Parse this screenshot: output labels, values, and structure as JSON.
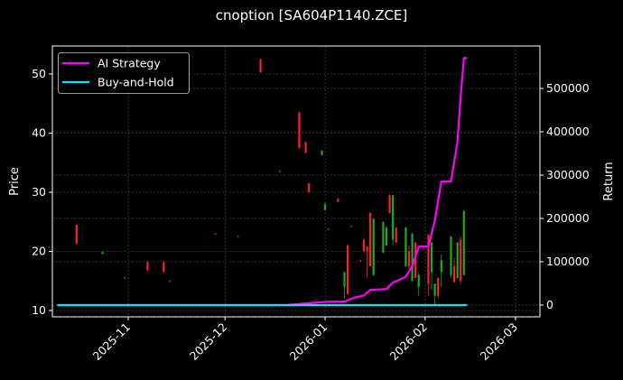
{
  "chart_data": {
    "type": "candlestick+line",
    "title": "cnoption [SA604P1140.ZCE]",
    "xlabel": "",
    "ylabel_left": "Price",
    "ylabel_right": "Return",
    "x_ticks": [
      "2025-11",
      "2025-12",
      "2026-01",
      "2026-02",
      "2026-03"
    ],
    "y_left_ticks": [
      10,
      20,
      30,
      40,
      50
    ],
    "y_right_ticks": [
      0,
      100000,
      200000,
      300000,
      400000,
      500000
    ],
    "ylim_left": [
      9,
      55
    ],
    "ylim_right": [
      -30000,
      580000
    ],
    "grid": true,
    "legend_position": "upper left",
    "legend": [
      {
        "label": "AI Strategy",
        "color": "#ff00ff"
      },
      {
        "label": "Buy-and-Hold",
        "color": "#00e5ff"
      }
    ],
    "colors": {
      "up": "#1faa1f",
      "down": "#ff2020",
      "background": "#000000",
      "grid": "#555555",
      "axes": "#ffffff"
    },
    "candles": [
      {
        "date": "2025-10-16",
        "open": 24.5,
        "close": 21.3,
        "high": 24.5,
        "low": 21.2
      },
      {
        "date": "2025-10-24",
        "open": 19.6,
        "close": 19.9,
        "high": 20.0,
        "low": 19.5
      },
      {
        "date": "2025-10-31",
        "open": 15.6,
        "close": 15.5,
        "high": 15.7,
        "low": 15.4
      },
      {
        "date": "2025-11-07",
        "open": 18.2,
        "close": 16.8,
        "high": 18.3,
        "low": 16.7
      },
      {
        "date": "2025-11-12",
        "open": 18.2,
        "close": 16.5,
        "high": 18.3,
        "low": 16.4
      },
      {
        "date": "2025-11-14",
        "open": 15.0,
        "close": 14.9,
        "high": 15.1,
        "low": 14.8
      },
      {
        "date": "2025-11-28",
        "open": 23.0,
        "close": 22.9,
        "high": 23.1,
        "low": 22.8
      },
      {
        "date": "2025-12-05",
        "open": 22.6,
        "close": 22.5,
        "high": 22.7,
        "low": 22.4
      },
      {
        "date": "2025-12-12",
        "open": 52.5,
        "close": 50.3,
        "high": 52.6,
        "low": 50.2
      },
      {
        "date": "2025-12-18",
        "open": 33.6,
        "close": 33.5,
        "high": 33.7,
        "low": 33.4
      },
      {
        "date": "2025-12-24",
        "open": 43.5,
        "close": 37.5,
        "high": 43.6,
        "low": 37.4
      },
      {
        "date": "2025-12-26",
        "open": 38.5,
        "close": 36.7,
        "high": 38.6,
        "low": 36.6
      },
      {
        "date": "2025-12-27",
        "open": 31.5,
        "close": 30.0,
        "high": 31.6,
        "low": 29.9
      },
      {
        "date": "2025-12-31",
        "open": 36.3,
        "close": 37.0,
        "high": 37.1,
        "low": 36.2
      },
      {
        "date": "2026-01-01",
        "open": 27.0,
        "close": 28.0,
        "high": 28.1,
        "low": 26.9
      },
      {
        "date": "2026-01-02",
        "open": 23.8,
        "close": 23.7,
        "high": 23.9,
        "low": 23.6
      },
      {
        "date": "2026-01-05",
        "open": 28.9,
        "close": 28.4,
        "high": 29.0,
        "low": 28.3
      },
      {
        "date": "2026-01-07",
        "open": 14.0,
        "close": 16.5,
        "high": 16.6,
        "low": 12.0
      },
      {
        "date": "2026-01-08",
        "open": 21.0,
        "close": 12.8,
        "high": 21.2,
        "low": 12.7
      },
      {
        "date": "2026-01-09",
        "open": 24.3,
        "close": 24.2,
        "high": 24.4,
        "low": 24.1
      },
      {
        "date": "2026-01-12",
        "open": 18.5,
        "close": 18.4,
        "high": 18.6,
        "low": 18.3
      },
      {
        "date": "2026-01-13",
        "open": 22.0,
        "close": 20.0,
        "high": 22.1,
        "low": 19.9
      },
      {
        "date": "2026-01-14",
        "open": 20.8,
        "close": 20.0,
        "high": 20.9,
        "low": 15.5
      },
      {
        "date": "2026-01-15",
        "open": 26.5,
        "close": 17.5,
        "high": 26.6,
        "low": 17.4
      },
      {
        "date": "2026-01-16",
        "open": 16.0,
        "close": 25.5,
        "high": 25.6,
        "low": 15.9
      },
      {
        "date": "2026-01-19",
        "open": 19.8,
        "close": 25.0,
        "high": 25.1,
        "low": 19.7
      },
      {
        "date": "2026-01-20",
        "open": 21.0,
        "close": 24.0,
        "high": 24.2,
        "low": 20.9
      },
      {
        "date": "2026-01-21",
        "open": 29.5,
        "close": 26.5,
        "high": 29.6,
        "low": 26.4
      },
      {
        "date": "2026-01-22",
        "open": 22.0,
        "close": 29.5,
        "high": 29.6,
        "low": 21.0
      },
      {
        "date": "2026-01-23",
        "open": 24.0,
        "close": 21.5,
        "high": 24.2,
        "low": 21.4
      },
      {
        "date": "2026-01-26",
        "open": 17.5,
        "close": 24.0,
        "high": 24.1,
        "low": 17.4
      },
      {
        "date": "2026-01-27",
        "open": 20.0,
        "close": 17.5,
        "high": 21.0,
        "low": 17.0
      },
      {
        "date": "2026-01-28",
        "open": 15.0,
        "close": 23.0,
        "high": 23.1,
        "low": 14.9
      },
      {
        "date": "2026-01-29",
        "open": 21.5,
        "close": 15.5,
        "high": 21.6,
        "low": 15.4
      },
      {
        "date": "2026-01-30",
        "open": 14.0,
        "close": 16.0,
        "high": 16.5,
        "low": 12.5
      },
      {
        "date": "2026-02-02",
        "open": 22.8,
        "close": 14.5,
        "high": 22.9,
        "low": 12.5
      },
      {
        "date": "2026-02-03",
        "open": 16.5,
        "close": 21.5,
        "high": 21.6,
        "low": 13.5
      },
      {
        "date": "2026-02-04",
        "open": 12.5,
        "close": 14.5,
        "high": 14.6,
        "low": 11.0
      },
      {
        "date": "2026-02-05",
        "open": 15.5,
        "close": 12.5,
        "high": 15.6,
        "low": 12.0
      },
      {
        "date": "2026-02-06",
        "open": 16.5,
        "close": 18.5,
        "high": 19.5,
        "low": 14.0
      },
      {
        "date": "2026-02-09",
        "open": 16.0,
        "close": 22.5,
        "high": 22.6,
        "low": 15.5
      },
      {
        "date": "2026-02-10",
        "open": 17.5,
        "close": 14.8,
        "high": 19.0,
        "low": 14.7
      },
      {
        "date": "2026-02-11",
        "open": 15.5,
        "close": 21.5,
        "high": 21.6,
        "low": 15.4
      },
      {
        "date": "2026-02-12",
        "open": 22.0,
        "close": 15.0,
        "high": 22.5,
        "low": 14.5
      },
      {
        "date": "2026-02-13",
        "open": 16.0,
        "close": 26.8,
        "high": 27.0,
        "low": 15.9
      }
    ],
    "series": [
      {
        "name": "AI Strategy",
        "color": "#ff00ff",
        "x": [
          "2025-10-10",
          "2025-12-20",
          "2025-12-28",
          "2026-01-02",
          "2026-01-07",
          "2026-01-10",
          "2026-01-13",
          "2026-01-15",
          "2026-01-20",
          "2026-01-22",
          "2026-01-26",
          "2026-01-28",
          "2026-01-30",
          "2026-02-02",
          "2026-02-04",
          "2026-02-06",
          "2026-02-09",
          "2026-02-11",
          "2026-02-12",
          "2026-02-13",
          "2026-02-14"
        ],
        "values": [
          0,
          0,
          5000,
          8000,
          8000,
          17000,
          22000,
          35000,
          37000,
          52000,
          65000,
          90000,
          135000,
          135000,
          195000,
          285000,
          285000,
          375000,
          480000,
          570000,
          570000
        ]
      },
      {
        "name": "Buy-and-Hold",
        "color": "#00e5ff",
        "x": [
          "2025-10-10",
          "2026-02-14"
        ],
        "values": [
          0,
          0
        ]
      }
    ]
  }
}
